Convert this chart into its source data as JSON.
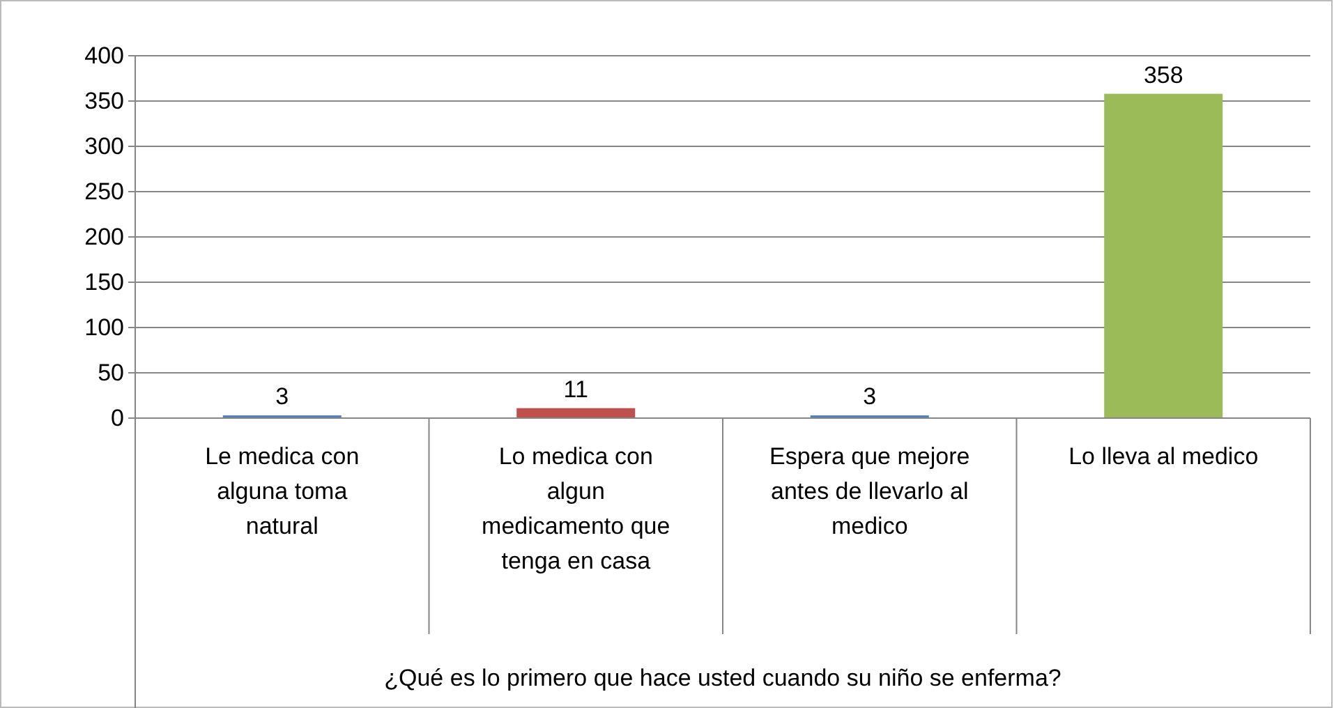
{
  "chart_data": {
    "type": "bar",
    "annotations": [
      "¿Qué es lo primero que hace usted cuando su niño se enferma?"
    ],
    "categories": [
      "Le medica con alguna toma natural",
      "Lo medica con algun medicamento que tenga en casa",
      "Espera que mejore antes de llevarlo al medico",
      "Lo lleva al medico"
    ],
    "values": [
      3,
      11,
      3,
      358
    ],
    "colors": [
      "#4f81bd",
      "#c0504d",
      "#4f81bd",
      "#9bbb59"
    ],
    "ylim": [
      0,
      400
    ],
    "yticks": [
      0,
      50,
      100,
      150,
      200,
      250,
      300,
      350,
      400
    ],
    "grid": "y",
    "data_labels": true
  }
}
